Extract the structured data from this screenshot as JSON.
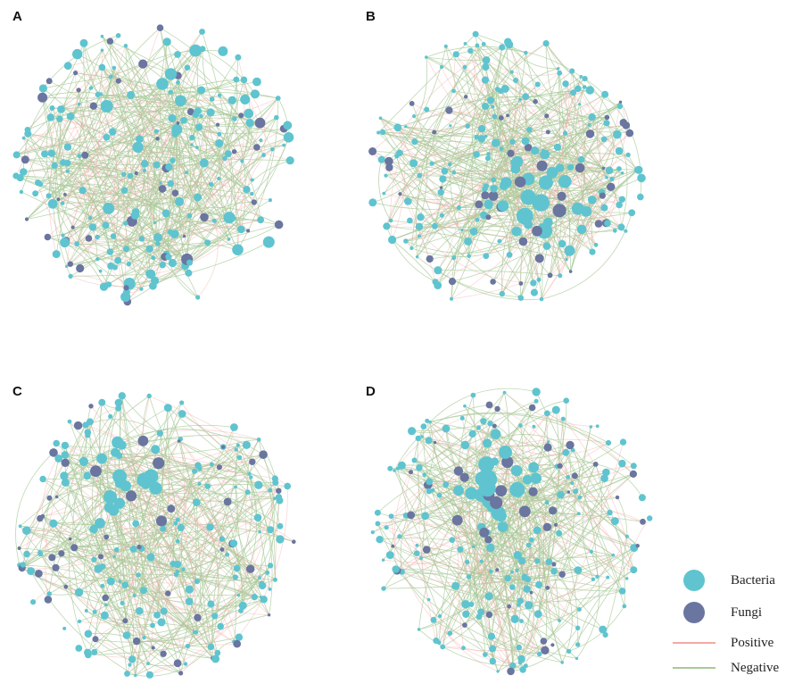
{
  "figure": {
    "panels": [
      {
        "id": "A",
        "label": "A",
        "seed": 11,
        "hub": "none"
      },
      {
        "id": "B",
        "label": "B",
        "seed": 23,
        "hub": "lower-right"
      },
      {
        "id": "C",
        "label": "C",
        "seed": 37,
        "hub": "upper-left"
      },
      {
        "id": "D",
        "label": "D",
        "seed": 53,
        "hub": "upper-left"
      }
    ],
    "legend": {
      "bacteria": {
        "label": "Bacteria",
        "color": "#5fc4cf"
      },
      "fungi": {
        "label": "Fungi",
        "color": "#6a75a0"
      },
      "positive": {
        "label": "Positive",
        "color": "#f2aaa6"
      },
      "negative": {
        "label": "Negative",
        "color": "#a9c99a"
      }
    }
  }
}
